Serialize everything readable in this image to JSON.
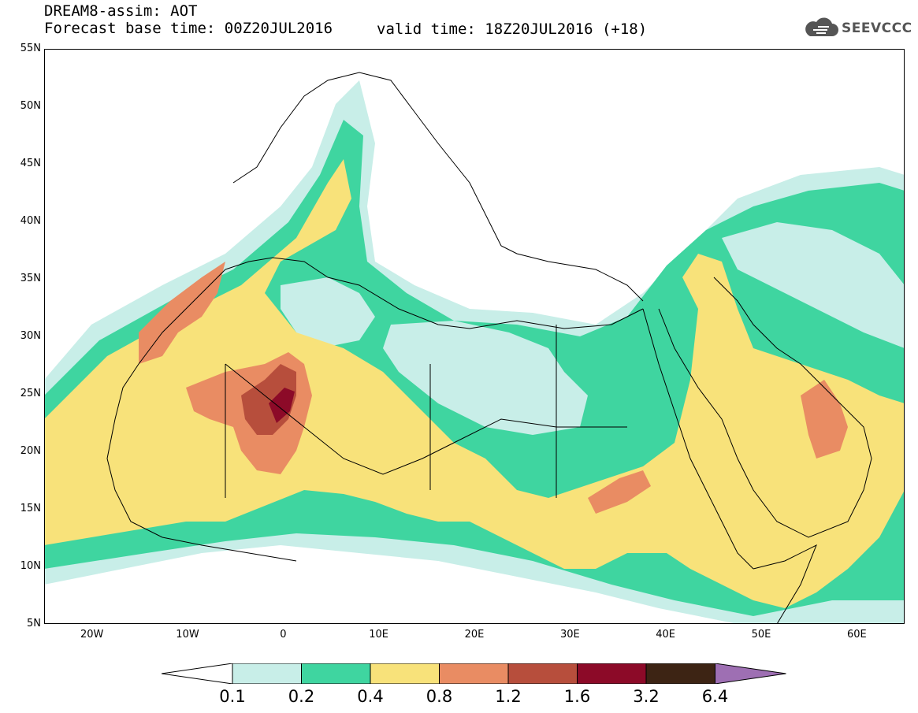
{
  "title": {
    "line1": "DREAM8-assim: AOT",
    "line2": "Forecast base time: 00Z20JUL2016",
    "valid": "valid time: 18Z20JUL2016 (+18)"
  },
  "logo": {
    "text": "SEEVCCC",
    "icon": "cloud-icon"
  },
  "map": {
    "lon_range": [
      -25,
      65
    ],
    "lat_range": [
      5,
      55
    ],
    "y_ticks": [
      "55N",
      "50N",
      "45N",
      "40N",
      "35N",
      "30N",
      "25N",
      "20N",
      "15N",
      "10N",
      "5N"
    ],
    "x_ticks": [
      "20W",
      "10W",
      "0",
      "10E",
      "20E",
      "30E",
      "40E",
      "50E",
      "60E"
    ]
  },
  "colorbar": {
    "labels": [
      "0.1",
      "0.2",
      "0.4",
      "0.8",
      "1.2",
      "1.6",
      "3.2",
      "6.4"
    ],
    "colors": [
      "#ffffff",
      "#c8eee8",
      "#3fd5a0",
      "#f8e27a",
      "#e98c63",
      "#b74e3c",
      "#8c0a28",
      "#3d2414",
      "#9e6fb3"
    ]
  }
}
